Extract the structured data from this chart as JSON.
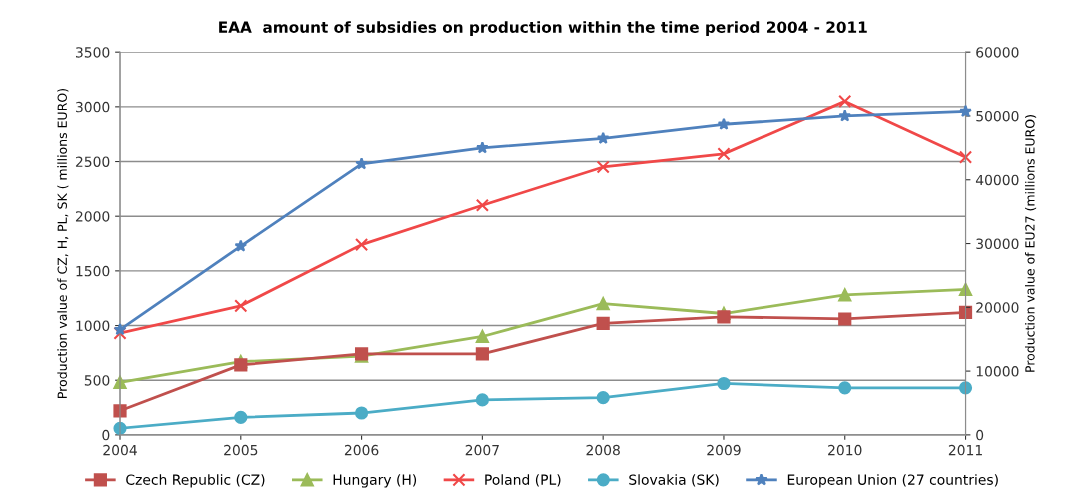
{
  "chart_data": {
    "type": "line",
    "title": "EAA  amount of subsidies on production within the time period 2004 - 2011",
    "ylabel": "Production value of CZ, H, PL, SK ( millions EURO)",
    "y2label": "Production value of EU27 (millions EURO)",
    "categories": [
      "2004",
      "2005",
      "2006",
      "2007",
      "2008",
      "2009",
      "2010",
      "2011"
    ],
    "series": [
      {
        "name": "Czech Republic (CZ)",
        "color": "#c0504d",
        "marker": "square",
        "values": [
          220,
          640,
          740,
          740,
          1020,
          1080,
          1060,
          1120
        ]
      },
      {
        "name": "Hungary (H)",
        "color": "#9bbb59",
        "marker": "triangle",
        "values": [
          480,
          670,
          720,
          900,
          1200,
          1110,
          1280,
          1330
        ]
      },
      {
        "name": "Poland (PL)",
        "color": "#f04848",
        "marker": "cross",
        "values": [
          930,
          1180,
          1740,
          2100,
          2450,
          2570,
          3050,
          2540
        ]
      },
      {
        "name": "Slovakia (SK)",
        "color": "#4bacc6",
        "marker": "circle",
        "values": [
          60,
          160,
          200,
          320,
          340,
          470,
          430,
          430
        ]
      },
      {
        "name": "European Union (27 countries)",
        "color": "#4f81bd",
        "marker": "star",
        "axis": "y2",
        "values": [
          16500,
          29600,
          42500,
          45000,
          46500,
          48700,
          50000,
          50700
        ]
      }
    ],
    "ylim": [
      0,
      3500
    ],
    "yticks": [
      0,
      500,
      1000,
      1500,
      2000,
      2500,
      3000,
      3500
    ],
    "y2lim": [
      0,
      60000
    ],
    "y2ticks": [
      0,
      10000,
      20000,
      30000,
      40000,
      50000,
      60000
    ],
    "grid": "y",
    "legend": "bottom",
    "line_style": "solid"
  }
}
